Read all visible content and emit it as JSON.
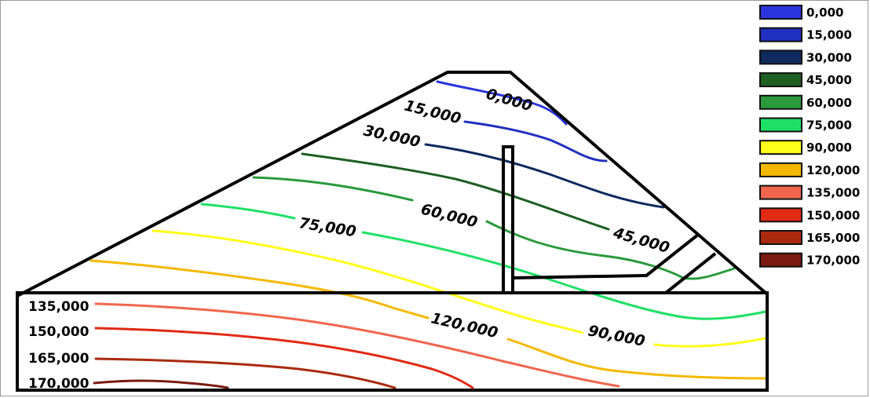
{
  "legend": {
    "items": [
      {
        "label": "0,000",
        "color": "#2a35dd"
      },
      {
        "label": "15,000",
        "color": "#2030c0"
      },
      {
        "label": "30,000",
        "color": "#0e2a5e"
      },
      {
        "label": "45,000",
        "color": "#1e5f22"
      },
      {
        "label": "60,000",
        "color": "#2a9a3c"
      },
      {
        "label": "75,000",
        "color": "#1fe066"
      },
      {
        "label": "90,000",
        "color": "#ffff1a"
      },
      {
        "label": "120,000",
        "color": "#f5b800"
      },
      {
        "label": "135,000",
        "color": "#f0664e"
      },
      {
        "label": "150,000",
        "color": "#e02a14"
      },
      {
        "label": "165,000",
        "color": "#a92a0e"
      },
      {
        "label": "170,000",
        "color": "#7a1a10"
      }
    ]
  },
  "contour_labels": {
    "c0": "0,000",
    "c15": "15,000",
    "c30": "30,000",
    "c45": "45,000",
    "c60": "60,000",
    "c75": "75,000",
    "c90": "90,000",
    "c120": "120,000"
  },
  "foundation_labels": {
    "c135": "135,000",
    "c150": "150,000",
    "c165": "165,000",
    "c170": "170,000"
  }
}
